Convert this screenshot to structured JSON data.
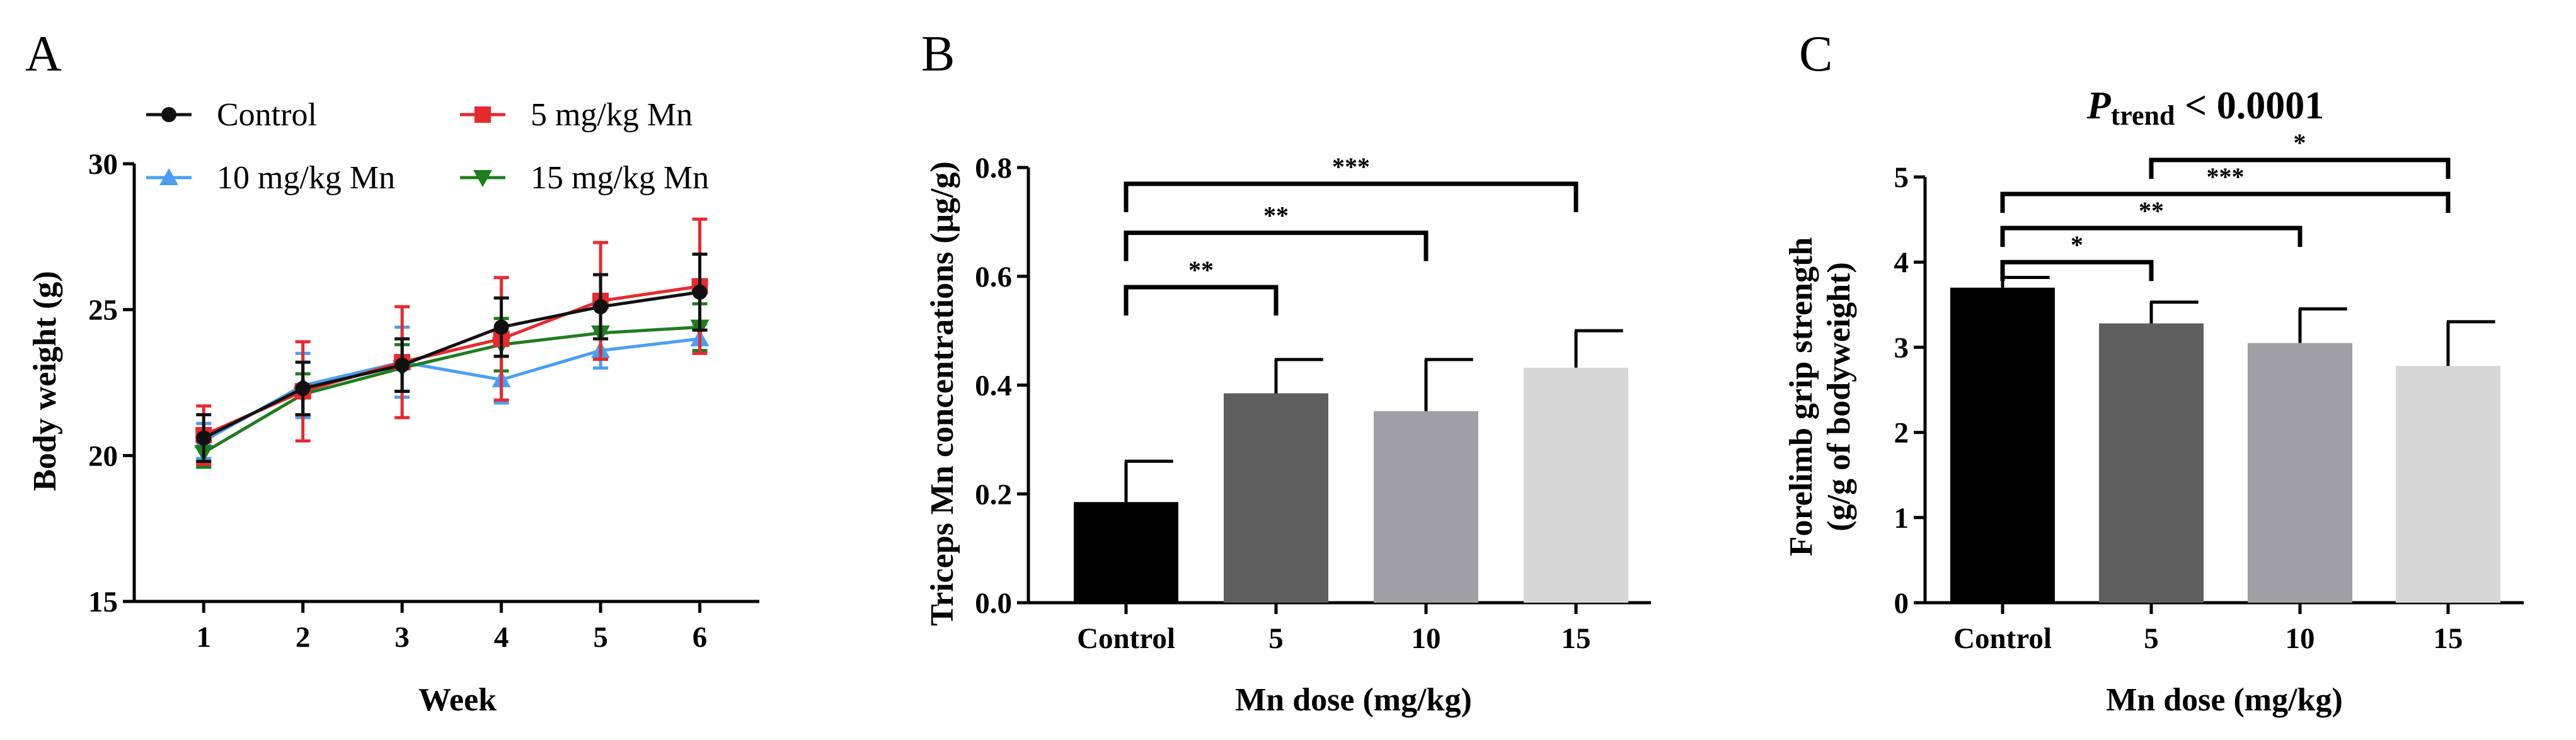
{
  "chart_data": [
    {
      "panel": "A",
      "type": "line",
      "title": "",
      "xlabel": "Week",
      "ylabel": "Body weight (g)",
      "x": [
        1,
        2,
        3,
        4,
        5,
        6
      ],
      "x_tick_labels": [
        "1",
        "2",
        "3",
        "4",
        "5",
        "6"
      ],
      "xlim": [
        0.3,
        6.6
      ],
      "ylim": [
        15,
        30
      ],
      "y_ticks": [
        15,
        20,
        25,
        30
      ],
      "y_tick_labels": [
        "15",
        "20",
        "25",
        "30"
      ],
      "legend_position": "top",
      "series": [
        {
          "name": "Control",
          "color": "#111111",
          "marker": "circle",
          "values": [
            20.6,
            22.3,
            23.1,
            24.4,
            25.1,
            25.6
          ],
          "errors": [
            0.8,
            0.9,
            0.9,
            1.0,
            1.1,
            1.3
          ]
        },
        {
          "name": "5 mg/kg Mn",
          "color": "#e8292e",
          "marker": "square",
          "values": [
            20.7,
            22.2,
            23.2,
            24.0,
            25.3,
            25.8
          ],
          "errors": [
            1.0,
            1.7,
            1.9,
            2.1,
            2.0,
            2.3
          ]
        },
        {
          "name": "10 mg/kg Mn",
          "color": "#4a9ff0",
          "marker": "triangle-up",
          "values": [
            20.5,
            22.4,
            23.2,
            22.6,
            23.6,
            24.0
          ],
          "errors": [
            0.6,
            1.1,
            1.2,
            0.8,
            0.6,
            0.5
          ]
        },
        {
          "name": "15 mg/kg Mn",
          "color": "#1e7d1e",
          "marker": "triangle-down",
          "values": [
            20.1,
            22.1,
            23.0,
            23.8,
            24.2,
            24.4
          ],
          "errors": [
            0.5,
            0.7,
            0.8,
            0.9,
            0.9,
            0.8
          ]
        }
      ]
    },
    {
      "panel": "B",
      "type": "bar",
      "title": "",
      "xlabel": "Mn dose (mg/kg)",
      "ylabel": "Triceps Mn concentrations (μg/g)",
      "categories": [
        "Control",
        "5",
        "10",
        "15"
      ],
      "values": [
        0.185,
        0.385,
        0.352,
        0.432
      ],
      "errors": [
        0.075,
        0.062,
        0.095,
        0.068
      ],
      "colors": [
        "#000000",
        "#5e5e5e",
        "#a0a0a4",
        "#d6d6d6"
      ],
      "ylim": [
        0,
        0.8
      ],
      "y_ticks": [
        0,
        0.2,
        0.4,
        0.6,
        0.8
      ],
      "y_tick_labels": [
        "0.0",
        "0.2",
        "0.4",
        "0.6",
        "0.8"
      ],
      "significance": [
        {
          "from": 0,
          "to": 1,
          "label": "**",
          "level": 0.58
        },
        {
          "from": 0,
          "to": 2,
          "label": "**",
          "level": 0.68
        },
        {
          "from": 0,
          "to": 3,
          "label": "***",
          "level": 0.77
        }
      ]
    },
    {
      "panel": "C",
      "type": "bar",
      "title_main": "P",
      "title_sub": "trend",
      "title_rest": " < 0.0001",
      "xlabel": "Mn dose (mg/kg)",
      "ylabel_line1": "Forelimb grip strength",
      "ylabel_line2": "(g/g of bodyweight)",
      "categories": [
        "Control",
        "5",
        "10",
        "15"
      ],
      "values": [
        3.7,
        3.28,
        3.05,
        2.78
      ],
      "errors": [
        0.12,
        0.25,
        0.4,
        0.52
      ],
      "colors": [
        "#000000",
        "#5e5e5e",
        "#a0a0a4",
        "#d6d6d6"
      ],
      "ylim": [
        0,
        5
      ],
      "y_ticks": [
        0,
        1,
        2,
        3,
        4,
        5
      ],
      "y_tick_labels": [
        "0",
        "1",
        "2",
        "3",
        "4",
        "5"
      ],
      "significance": [
        {
          "from": 0,
          "to": 1,
          "label": "*",
          "level": 4.0
        },
        {
          "from": 0,
          "to": 2,
          "label": "**",
          "level": 4.4
        },
        {
          "from": 0,
          "to": 3,
          "label": "***",
          "level": 4.8
        },
        {
          "from": 1,
          "to": 3,
          "label": "*",
          "level": 5.2
        }
      ]
    }
  ]
}
